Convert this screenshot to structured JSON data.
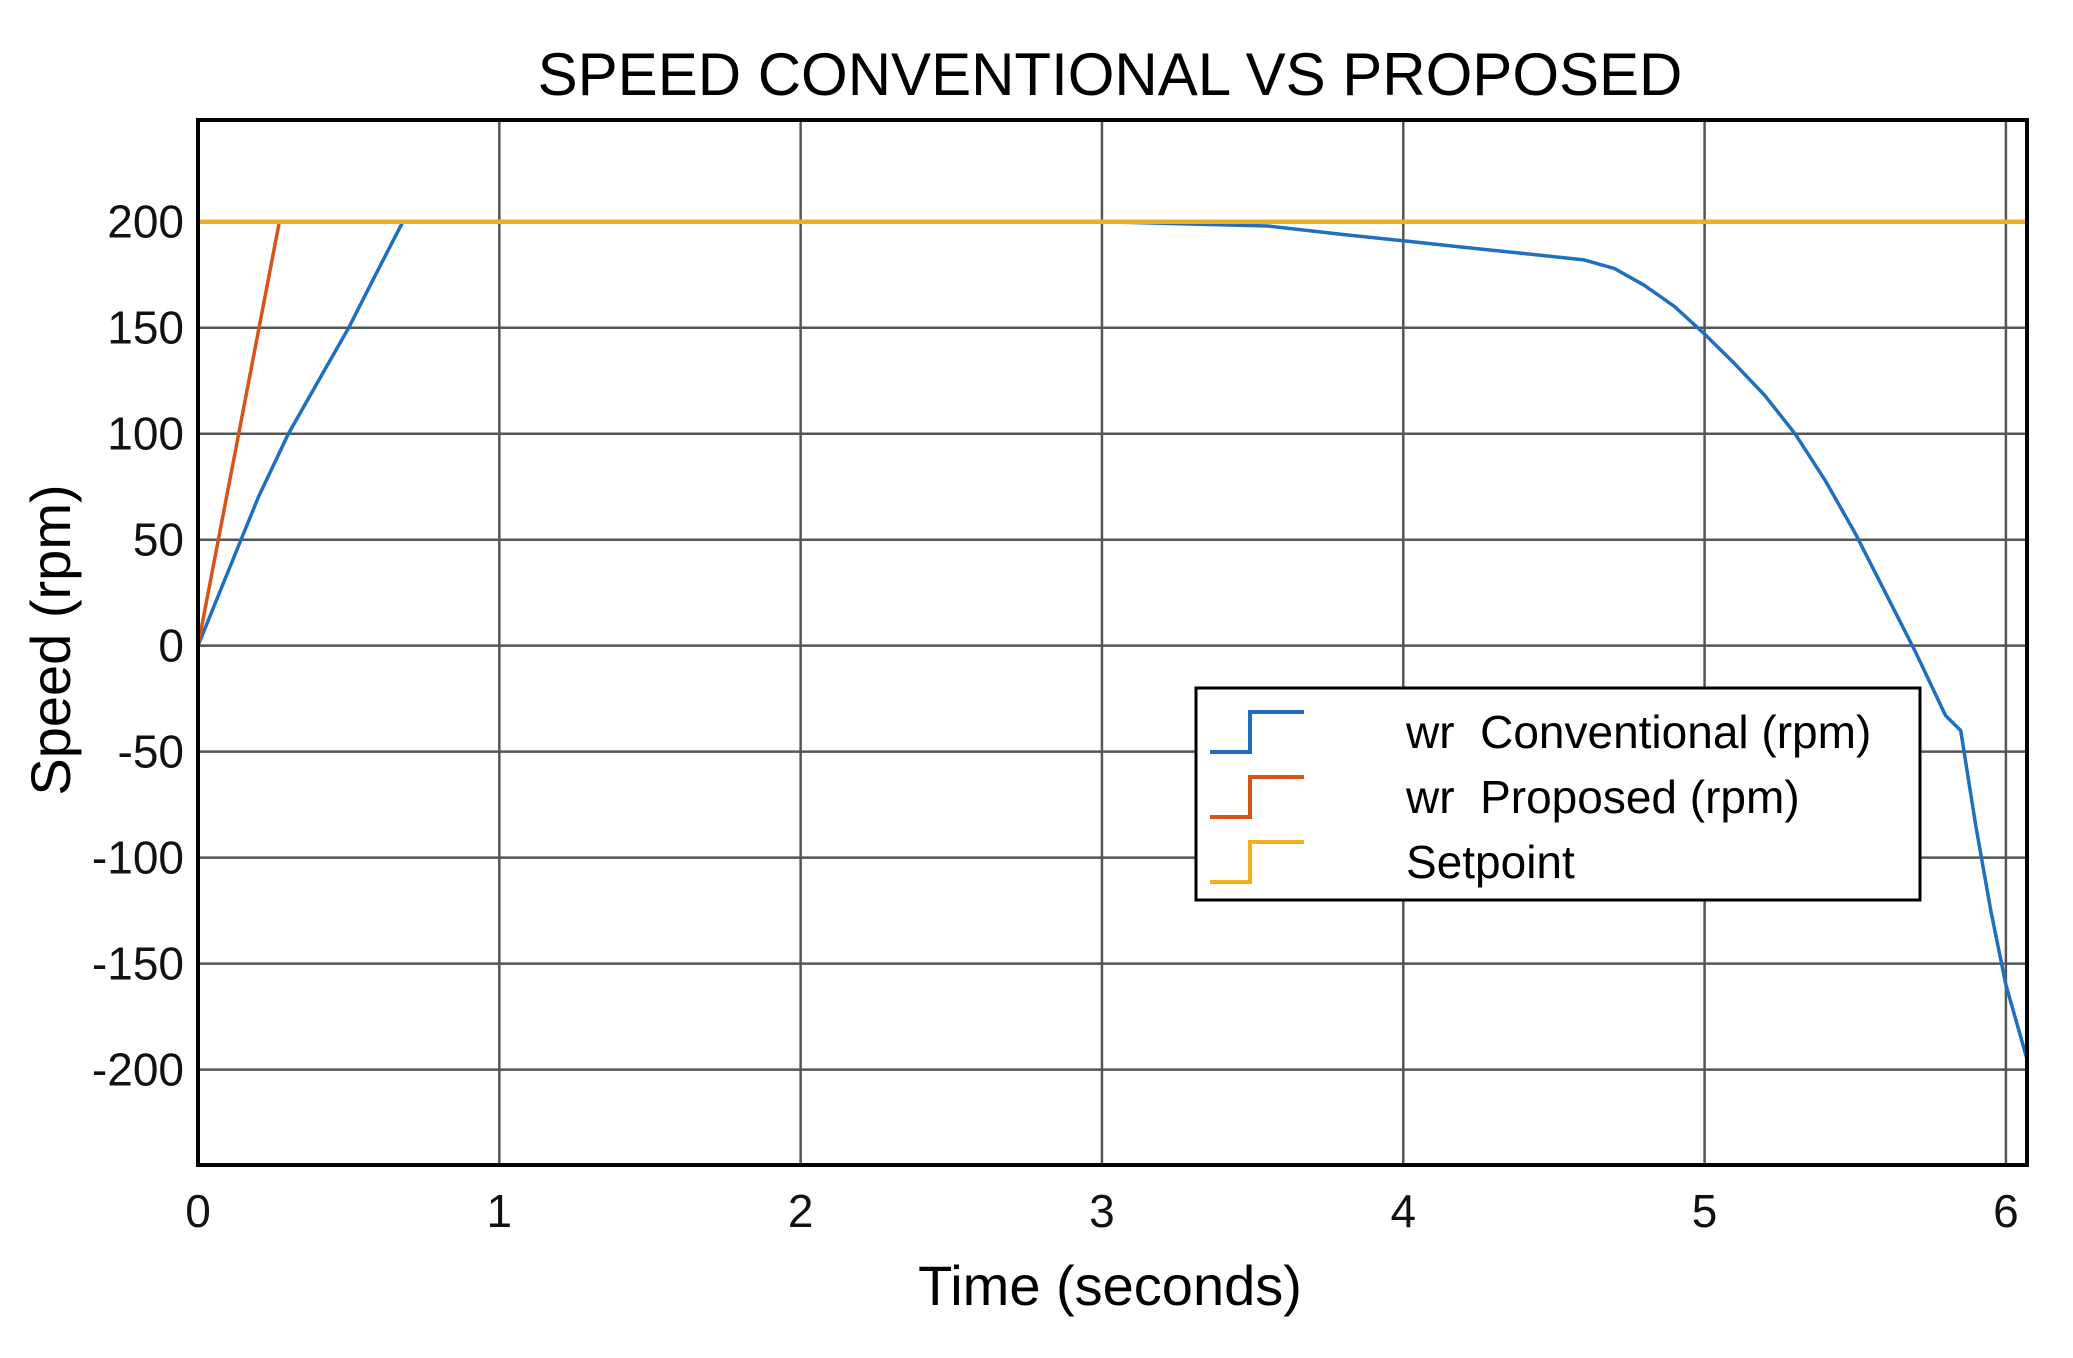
{
  "chart_data": {
    "type": "line",
    "title": "SPEED CONVENTIONAL VS PROPOSED",
    "xlabel": "Time (seconds)",
    "ylabel": "Speed (rpm)",
    "xlim": [
      0,
      6.07
    ],
    "ylim": [
      -245,
      248
    ],
    "xticks": [
      0,
      1,
      2,
      3,
      4,
      5,
      6
    ],
    "yticks": [
      200,
      150,
      100,
      50,
      0,
      -50,
      -100,
      -150,
      -200
    ],
    "grid": true,
    "legend_position": "center-right",
    "series": [
      {
        "name": "wr  Conventional (rpm)",
        "color": "#1f6fc0",
        "points": [
          [
            0,
            0
          ],
          [
            0.1,
            35
          ],
          [
            0.2,
            70
          ],
          [
            0.3,
            100
          ],
          [
            0.4,
            125
          ],
          [
            0.5,
            150
          ],
          [
            0.6,
            178
          ],
          [
            0.68,
            200
          ],
          [
            1.0,
            200
          ],
          [
            2.0,
            200
          ],
          [
            3.0,
            200
          ],
          [
            3.55,
            198
          ],
          [
            3.8,
            194
          ],
          [
            4.0,
            191
          ],
          [
            4.2,
            188
          ],
          [
            4.4,
            185
          ],
          [
            4.6,
            182
          ],
          [
            4.7,
            178
          ],
          [
            4.8,
            170
          ],
          [
            4.9,
            160
          ],
          [
            5.0,
            147
          ],
          [
            5.1,
            133
          ],
          [
            5.2,
            118
          ],
          [
            5.3,
            100
          ],
          [
            5.4,
            78
          ],
          [
            5.5,
            53
          ],
          [
            5.6,
            25
          ],
          [
            5.7,
            -3
          ],
          [
            5.8,
            -33
          ],
          [
            5.85,
            -40
          ],
          [
            5.9,
            -85
          ],
          [
            5.95,
            -125
          ],
          [
            6.0,
            -160
          ],
          [
            6.07,
            -195
          ]
        ]
      },
      {
        "name": "wr  Proposed (rpm)",
        "color": "#d95319",
        "points": [
          [
            0,
            0
          ],
          [
            0.27,
            200
          ],
          [
            1.0,
            200
          ],
          [
            2.0,
            200
          ],
          [
            3.0,
            200
          ],
          [
            4.0,
            200
          ],
          [
            5.0,
            200
          ],
          [
            6.07,
            200
          ]
        ]
      },
      {
        "name": "Setpoint",
        "color": "#edb120",
        "points": [
          [
            0,
            200
          ],
          [
            6.07,
            200
          ]
        ]
      }
    ]
  }
}
